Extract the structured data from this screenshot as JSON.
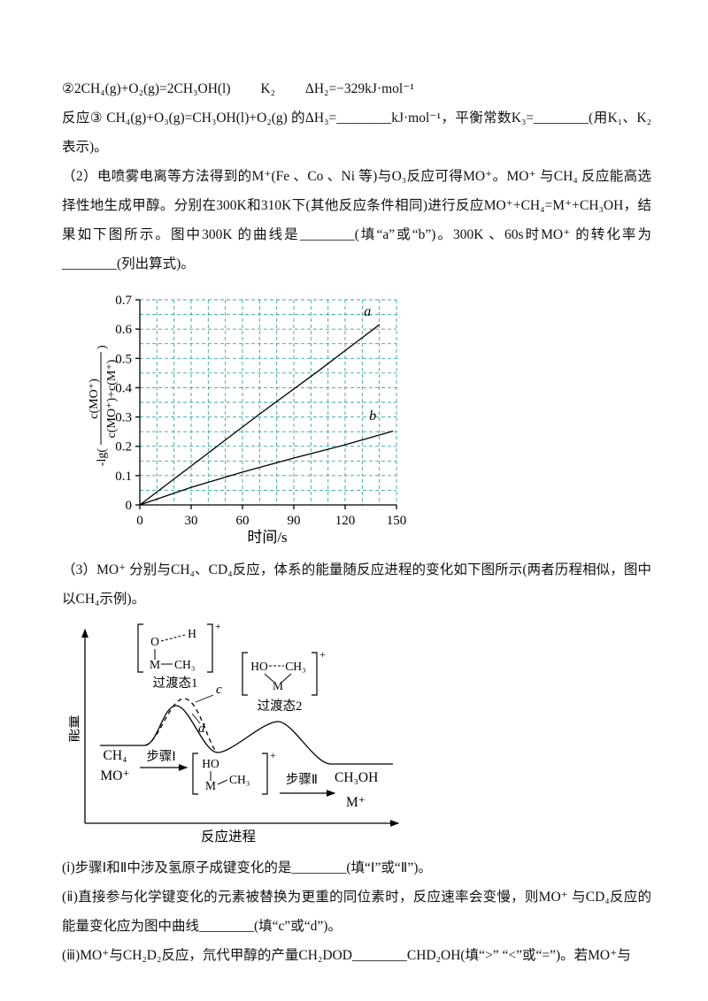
{
  "page": {
    "eq2": {
      "formula": "②2CH₄(g)+O₂(g)=2CH₃OH(l)",
      "k": "K₂",
      "dh": "ΔH₂=−329kJ·mol⁻¹"
    },
    "reaction3": {
      "pre": "反应③",
      "formula": "CH₄(g)+O₃(g)=CH₃OH(l)+O₂(g)",
      "post": "的ΔH₃=________kJ·mol⁻¹，平衡常数K₃=________(用K₁、K₂表示)。"
    },
    "q2_text": "（2）电喷雾电离等方法得到的M⁺(Fe 、Co 、Ni 等)与O₃反应可得MO⁺。MO⁺ 与CH₄ 反应能高选择性地生成甲醇。分别在300K和310K下(其他反应条件相同)进行反应MO⁺+CH₄=M⁺+CH₃OH，结果如下图所示。图中300K 的曲线是________(填“a”或“b”)。300K 、60s时MO⁺ 的转化率为________(列出算式)。",
    "q3_text": "（3）MO⁺ 分别与CH₄、CD₄反应，体系的能量随反应进程的变化如下图所示(两者历程相似，图中以CH₄示例)。",
    "sub_i": "(ⅰ)步骤Ⅰ和Ⅱ中涉及氢原子成键变化的是________(填“Ⅰ”或“Ⅱ”)。",
    "sub_ii": "(ⅱ)直接参与化学键变化的元素被替换为更重的同位素时，反应速率会变慢，则MO⁺ 与CD₄反应的能量变化应为图中曲线________(填“c”或“d”)。",
    "sub_iii": "(ⅲ)MO⁺与CH₂D₂反应，氘代甲醇的产量CH₂DOD________CHD₂OH(填“>” “<”或“=”)。若MO⁺与"
  },
  "chart_data": {
    "type": "line",
    "title": "",
    "xlabel": "时间/s",
    "ylabel": "-lg(c(MO⁺)/(c(MO⁺)+c(M⁺)))",
    "ylabel_open": "-lg(",
    "ylabel_num": "c(MO⁺)",
    "ylabel_den": "c(MO⁺)+c(M⁺)",
    "ylabel_close": ")",
    "xlim": [
      0,
      150
    ],
    "ylim": [
      0,
      0.7
    ],
    "xticks": [
      0,
      30,
      60,
      90,
      120,
      150
    ],
    "yticks": [
      0,
      0.1,
      0.2,
      0.3,
      0.4,
      0.5,
      0.6,
      0.7
    ],
    "grid_step_x": 10,
    "grid_step_y": 0.05,
    "grid_color": "#33a6a0",
    "grid": "on",
    "legend": "inline-labels",
    "series": [
      {
        "name": "a",
        "x": [
          0,
          35,
          70,
          105,
          140
        ],
        "y": [
          0,
          0.155,
          0.31,
          0.46,
          0.615
        ],
        "label_pos": [
          131,
          0.645
        ]
      },
      {
        "name": "b",
        "x": [
          0,
          30,
          60,
          90,
          120,
          148
        ],
        "y": [
          0,
          0.06,
          0.112,
          0.16,
          0.205,
          0.252
        ],
        "label_pos": [
          134,
          0.29
        ]
      }
    ]
  },
  "energy_diagram": {
    "ylabel": "能量",
    "xlabel": "反应进程",
    "reactant1": "CH₄",
    "reactant2": "MO⁺",
    "ts1_label": "过渡态1",
    "ts2_label": "过渡态2",
    "ts1": {
      "o": "O",
      "h": "H",
      "m": "M",
      "ch3": "CH₃",
      "charge": "+"
    },
    "intermediate": {
      "ho": "HO",
      "m": "M",
      "ch3": "CH₃",
      "charge": "+"
    },
    "ts2": {
      "ho": "HO",
      "ch3": "CH₃",
      "m": "M",
      "charge": "+"
    },
    "step1": "步骤Ⅰ",
    "step2": "步骤Ⅱ",
    "product1": "CH₃OH",
    "product2": "M⁺",
    "curve_c": "c",
    "curve_d": "d"
  }
}
